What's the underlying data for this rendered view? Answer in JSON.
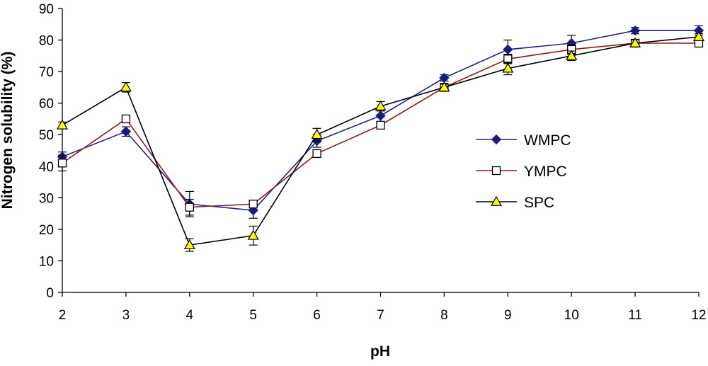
{
  "chart_data": {
    "type": "line",
    "title": "",
    "xlabel": "pH",
    "ylabel": "Nitrogen solubility (%)",
    "x": [
      2,
      3,
      4,
      5,
      6,
      7,
      8,
      9,
      10,
      11,
      12
    ],
    "xlim": [
      2,
      12
    ],
    "ylim": [
      0,
      90
    ],
    "yticks": [
      0,
      10,
      20,
      30,
      40,
      50,
      60,
      70,
      80,
      90
    ],
    "grid": false,
    "legend_position": "right",
    "series": [
      {
        "name": "WMPC",
        "color": "#1f1f8f",
        "marker": "diamond",
        "marker_fill": "#1a1a7a",
        "values": [
          43,
          51,
          28,
          26,
          48,
          56,
          68,
          77,
          79,
          83,
          83
        ],
        "errors": [
          1.5,
          1.5,
          4,
          2.5,
          2,
          2,
          1,
          3,
          2.5,
          1,
          1.5
        ]
      },
      {
        "name": "YMPC",
        "color": "#8b1a1a",
        "marker": "square",
        "marker_fill": "#ffffff",
        "values": [
          41,
          55,
          27,
          28,
          44,
          53,
          65,
          74,
          77,
          79,
          79
        ],
        "errors": [
          2.5,
          1,
          2.5,
          1,
          1,
          1,
          1,
          1.5,
          1.5,
          1,
          1
        ]
      },
      {
        "name": "SPC",
        "color": "#000000",
        "marker": "triangle",
        "marker_fill": "#ffff00",
        "values": [
          53,
          65,
          15,
          18,
          50,
          59,
          65,
          71,
          75,
          79,
          81
        ],
        "errors": [
          1,
          1.5,
          2,
          3,
          2,
          1.5,
          1,
          2,
          1.5,
          1,
          1
        ]
      }
    ]
  }
}
